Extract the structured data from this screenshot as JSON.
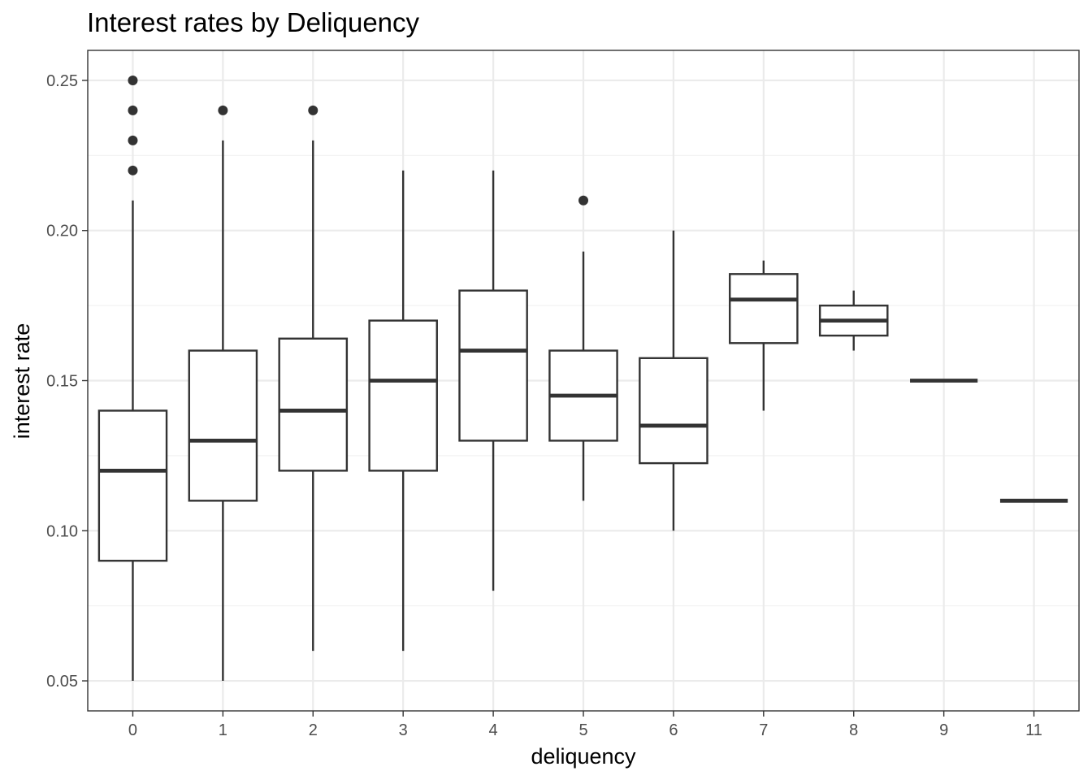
{
  "chart_data": {
    "type": "boxplot",
    "title": "Interest rates by Deliquency",
    "xlabel": "deliquency",
    "ylabel": "interest rate",
    "ylim": [
      0.04,
      0.26
    ],
    "y_ticks": [
      0.05,
      0.1,
      0.15,
      0.2,
      0.25
    ],
    "y_tick_labels": [
      "0.05",
      "0.10",
      "0.15",
      "0.20",
      "0.25"
    ],
    "y_minor_ticks": [
      0.075,
      0.125,
      0.175,
      0.225
    ],
    "categories": [
      "0",
      "1",
      "2",
      "3",
      "4",
      "5",
      "6",
      "7",
      "8",
      "9",
      "11"
    ],
    "grid": true,
    "theme": "bw",
    "colors": {
      "box_stroke": "#333333",
      "box_fill": "#ffffff",
      "grid_major": "#ebebeb",
      "grid_minor": "#f3f3f3",
      "panel_border": "#333333"
    },
    "boxes": [
      {
        "category": "0",
        "whisker_low": 0.05,
        "q1": 0.09,
        "median": 0.12,
        "q3": 0.14,
        "whisker_high": 0.21,
        "outliers": [
          0.22,
          0.23,
          0.24,
          0.25
        ]
      },
      {
        "category": "1",
        "whisker_low": 0.05,
        "q1": 0.11,
        "median": 0.13,
        "q3": 0.16,
        "whisker_high": 0.23,
        "outliers": [
          0.24
        ]
      },
      {
        "category": "2",
        "whisker_low": 0.06,
        "q1": 0.12,
        "median": 0.14,
        "q3": 0.164,
        "whisker_high": 0.23,
        "outliers": [
          0.24
        ]
      },
      {
        "category": "3",
        "whisker_low": 0.06,
        "q1": 0.12,
        "median": 0.15,
        "q3": 0.17,
        "whisker_high": 0.22,
        "outliers": []
      },
      {
        "category": "4",
        "whisker_low": 0.08,
        "q1": 0.13,
        "median": 0.16,
        "q3": 0.18,
        "whisker_high": 0.22,
        "outliers": []
      },
      {
        "category": "5",
        "whisker_low": 0.11,
        "q1": 0.13,
        "median": 0.145,
        "q3": 0.16,
        "whisker_high": 0.193,
        "outliers": [
          0.21
        ]
      },
      {
        "category": "6",
        "whisker_low": 0.1,
        "q1": 0.1225,
        "median": 0.135,
        "q3": 0.1575,
        "whisker_high": 0.2,
        "outliers": []
      },
      {
        "category": "7",
        "whisker_low": 0.14,
        "q1": 0.1625,
        "median": 0.177,
        "q3": 0.1855,
        "whisker_high": 0.19,
        "outliers": []
      },
      {
        "category": "8",
        "whisker_low": 0.16,
        "q1": 0.165,
        "median": 0.17,
        "q3": 0.175,
        "whisker_high": 0.18,
        "outliers": []
      },
      {
        "category": "9",
        "whisker_low": 0.15,
        "q1": 0.15,
        "median": 0.15,
        "q3": 0.15,
        "whisker_high": 0.15,
        "outliers": []
      },
      {
        "category": "11",
        "whisker_low": 0.11,
        "q1": 0.11,
        "median": 0.11,
        "q3": 0.11,
        "whisker_high": 0.11,
        "outliers": []
      }
    ]
  }
}
